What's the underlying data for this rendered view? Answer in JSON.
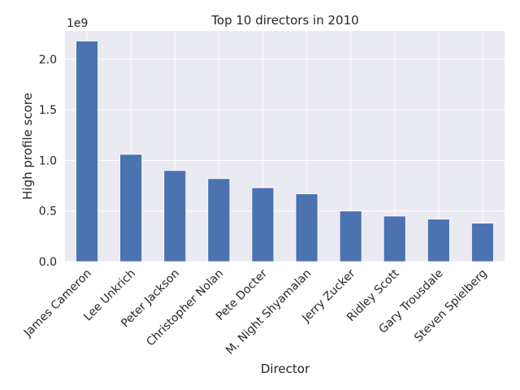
{
  "chart_data": {
    "type": "bar",
    "title": "Top 10 directors in 2010",
    "xlabel": "Director",
    "ylabel": "High profile score",
    "offset_label": "1e9",
    "categories": [
      "James Cameron",
      "Lee Unkrich",
      "Peter Jackson",
      "Christopher Nolan",
      "Pete Docter",
      "M. Night Shyamalan",
      "Jerry Zucker",
      "Ridley Scott",
      "Gary Trousdale",
      "Steven Spielberg"
    ],
    "values": [
      2.18,
      1.06,
      0.9,
      0.82,
      0.73,
      0.67,
      0.5,
      0.45,
      0.42,
      0.38
    ],
    "value_multiplier": 1000000000,
    "ylim": [
      0,
      2.28
    ],
    "yticks": [
      0.0,
      0.5,
      1.0,
      1.5,
      2.0
    ],
    "ytick_labels": [
      "0.0",
      "0.5",
      "1.0",
      "1.5",
      "2.0"
    ],
    "grid": true,
    "colors": {
      "bar": "#4c72b0",
      "background": "#eaeaf2",
      "grid": "#ffffff"
    }
  }
}
